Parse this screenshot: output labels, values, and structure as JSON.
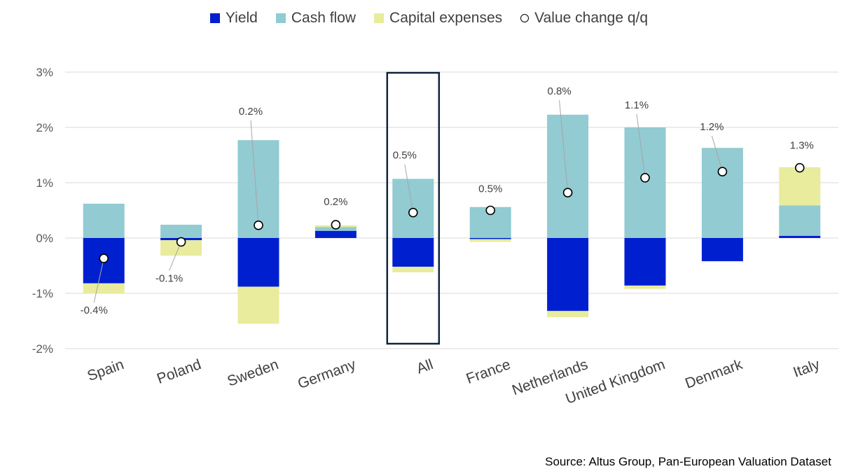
{
  "chart_data": {
    "type": "bar",
    "stacked": true,
    "categories": [
      "Spain",
      "Poland",
      "Sweden",
      "Germany",
      "All",
      "France",
      "Netherlands",
      "United Kingdom",
      "Denmark",
      "Italy"
    ],
    "series": [
      {
        "name": "Yield",
        "color": "#0020d0",
        "values": [
          -0.82,
          -0.04,
          -0.88,
          0.13,
          -0.52,
          -0.02,
          -1.32,
          -0.86,
          -0.42,
          0.04
        ]
      },
      {
        "name": "Cash flow",
        "color": "#92cbd2",
        "values": [
          0.62,
          0.24,
          1.77,
          0.07,
          1.07,
          0.56,
          2.23,
          2.0,
          1.63,
          0.55
        ]
      },
      {
        "name": "Capital expenses",
        "color": "#e8ec9c",
        "values": [
          -0.18,
          -0.28,
          -0.67,
          0.03,
          -0.1,
          -0.05,
          -0.11,
          -0.06,
          0.0,
          0.69
        ]
      }
    ],
    "markers": {
      "name": "Value change q/q",
      "values": [
        -0.37,
        -0.07,
        0.23,
        0.24,
        0.46,
        0.5,
        0.82,
        1.09,
        1.2,
        1.27
      ],
      "labels": [
        "-0.4%",
        "-0.1%",
        "0.2%",
        "0.2%",
        "0.5%",
        "0.5%",
        "0.8%",
        "1.1%",
        "1.2%",
        "1.3%"
      ]
    },
    "highlight_category": "All",
    "ylim": [
      -2,
      3
    ],
    "yticks": [
      "-2%",
      "-1%",
      "0%",
      "1%",
      "2%",
      "3%"
    ],
    "ytick_values": [
      -2,
      -1,
      0,
      1,
      2,
      3
    ],
    "grid": true,
    "legend_position": "top-center"
  },
  "legend": [
    {
      "label": "Yield",
      "color": "#0020d0",
      "kind": "square"
    },
    {
      "label": "Cash flow",
      "color": "#92cbd2",
      "kind": "square"
    },
    {
      "label": "Capital expenses",
      "color": "#e8ec9c",
      "kind": "square"
    },
    {
      "label": "Value change q/q",
      "color": "#ffffff",
      "kind": "circle"
    }
  ],
  "source": "Source:  Altus Group, Pan-European Valuation Dataset"
}
